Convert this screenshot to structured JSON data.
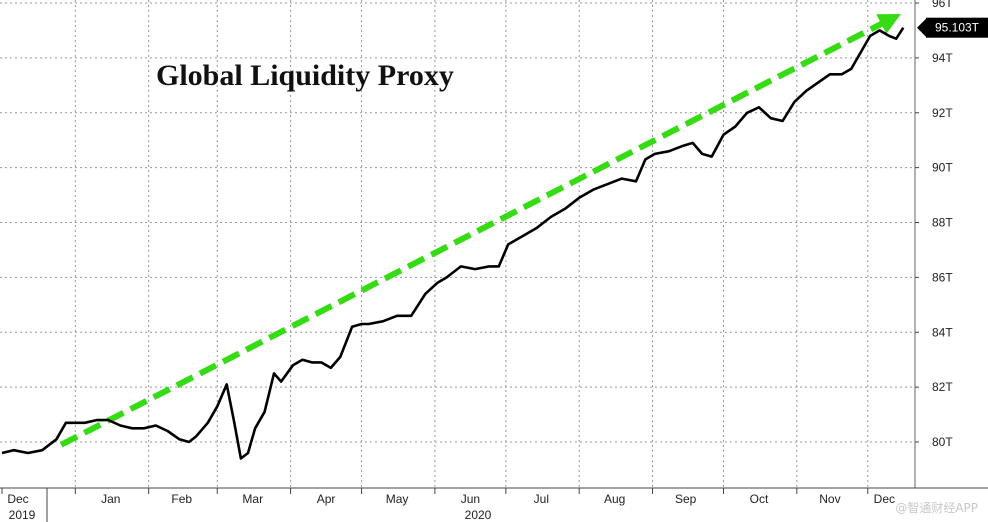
{
  "chart_data": {
    "type": "line",
    "title": "Global Liquidity Proxy",
    "xlabel": "",
    "ylabel": "",
    "ylim": [
      79,
      96
    ],
    "y_ticks": [
      "80T",
      "82T",
      "84T",
      "86T",
      "88T",
      "90T",
      "92T",
      "94T",
      "96T"
    ],
    "x_ticks": [
      "Dec",
      "Jan",
      "Feb",
      "Mar",
      "Apr",
      "May",
      "Jun",
      "Jul",
      "Aug",
      "Sep",
      "Oct",
      "Nov",
      "Dec"
    ],
    "year_labels": [
      "2019",
      "2020"
    ],
    "grid": true,
    "last_value_label": "95.103T",
    "colors": {
      "line": "#000000",
      "trend": "#33dd11",
      "grid": "#999999",
      "label_bg": "#000000"
    },
    "series": [
      {
        "x": [
          "2019-12-01",
          "2019-12-06",
          "2019-12-12",
          "2019-12-18",
          "2019-12-24",
          "2019-12-28",
          "2020-01-01",
          "2020-01-05",
          "2020-01-10",
          "2020-01-15",
          "2020-01-20",
          "2020-01-25",
          "2020-01-30",
          "2020-02-04",
          "2020-02-09",
          "2020-02-14",
          "2020-02-18",
          "2020-02-21",
          "2020-02-26",
          "2020-03-01",
          "2020-03-05",
          "2020-03-08",
          "2020-03-11",
          "2020-03-14",
          "2020-03-17",
          "2020-03-21",
          "2020-03-25",
          "2020-03-28",
          "2020-04-02",
          "2020-04-06",
          "2020-04-10",
          "2020-04-14",
          "2020-04-18",
          "2020-04-22",
          "2020-04-27",
          "2020-05-01",
          "2020-05-04",
          "2020-05-10",
          "2020-05-16",
          "2020-05-22",
          "2020-05-28",
          "2020-06-02",
          "2020-06-06",
          "2020-06-12",
          "2020-06-18",
          "2020-06-24",
          "2020-06-28",
          "2020-07-02",
          "2020-07-08",
          "2020-07-14",
          "2020-07-20",
          "2020-07-26",
          "2020-08-01",
          "2020-08-07",
          "2020-08-13",
          "2020-08-19",
          "2020-08-25",
          "2020-08-29",
          "2020-09-02",
          "2020-09-08",
          "2020-09-14",
          "2020-09-18",
          "2020-09-22",
          "2020-09-26",
          "2020-10-01",
          "2020-10-06",
          "2020-10-11",
          "2020-10-16",
          "2020-10-21",
          "2020-10-26",
          "2020-10-31",
          "2020-11-05",
          "2020-11-10",
          "2020-11-15",
          "2020-11-20",
          "2020-11-24",
          "2020-11-28",
          "2020-12-02",
          "2020-12-06",
          "2020-12-10",
          "2020-12-13",
          "2020-12-16"
        ],
        "values": [
          79.6,
          79.7,
          79.6,
          79.7,
          80.1,
          80.7,
          80.7,
          80.7,
          80.8,
          80.8,
          80.6,
          80.5,
          80.5,
          80.6,
          80.4,
          80.1,
          80.0,
          80.2,
          80.7,
          81.3,
          82.1,
          80.8,
          79.4,
          79.6,
          80.5,
          81.1,
          82.5,
          82.2,
          82.8,
          83.0,
          82.9,
          82.9,
          82.7,
          83.1,
          84.2,
          84.3,
          84.3,
          84.4,
          84.6,
          84.6,
          85.4,
          85.8,
          86.0,
          86.4,
          86.3,
          86.4,
          86.4,
          87.2,
          87.5,
          87.8,
          88.2,
          88.5,
          88.9,
          89.2,
          89.4,
          89.6,
          89.5,
          90.3,
          90.5,
          90.6,
          90.8,
          90.9,
          90.5,
          90.4,
          91.2,
          91.5,
          92.0,
          92.2,
          91.8,
          91.7,
          92.4,
          92.8,
          93.1,
          93.4,
          93.4,
          93.6,
          94.2,
          94.8,
          95.0,
          94.8,
          94.7,
          95.1
        ]
      },
      {
        "name": "",
        "kind": "trend",
        "x": [
          "2019-12-26",
          "2020-12-15"
        ],
        "values": [
          79.9,
          95.6
        ]
      }
    ]
  },
  "watermark": "@智通财经APP"
}
